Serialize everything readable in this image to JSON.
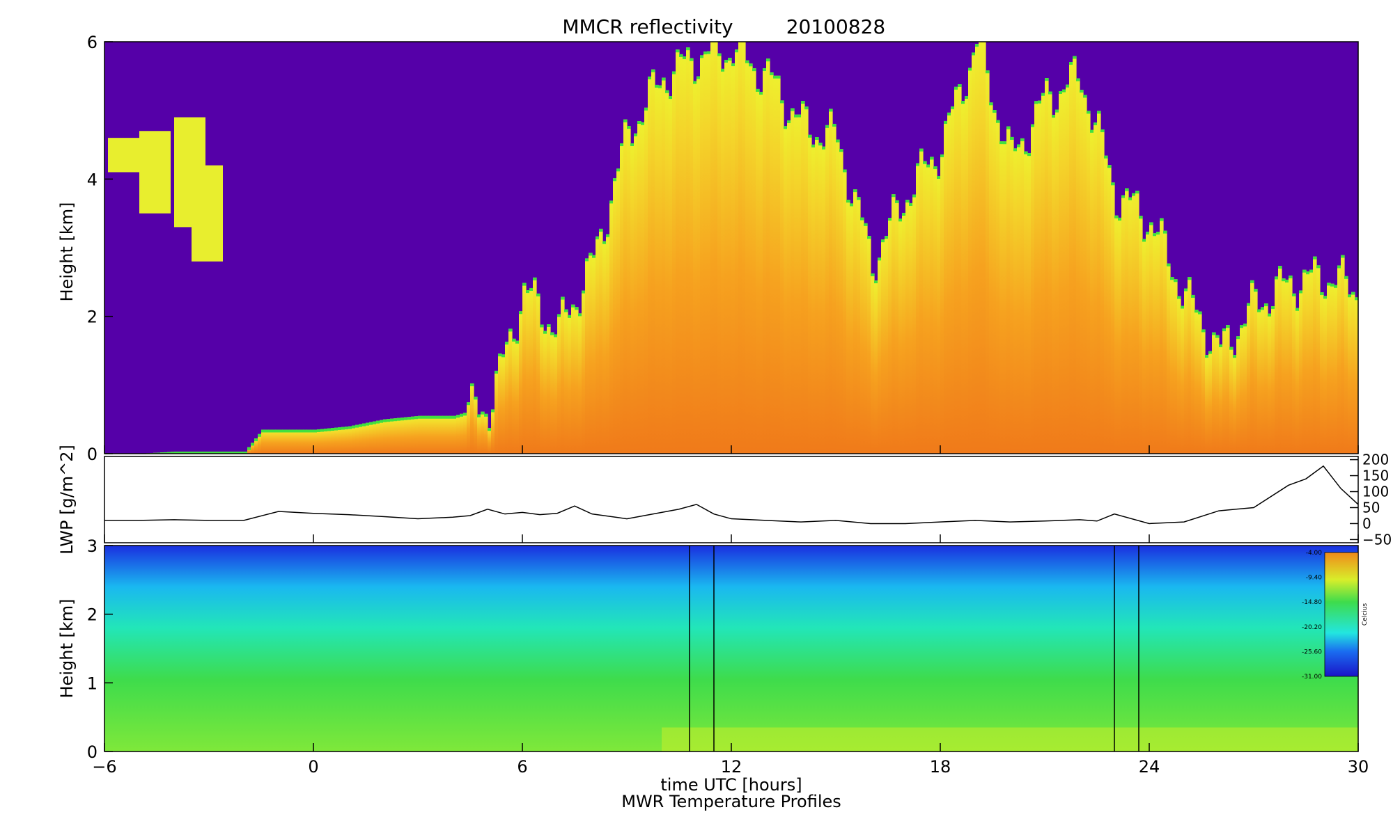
{
  "title": "MMCR reflectivity",
  "date": "20100828",
  "xlabel": "time UTC [hours]",
  "bottom_caption": "MWR Temperature Profiles",
  "colors": {
    "background": "#5500a8",
    "radar_low": "#40e040",
    "radar_mid": "#f4ee2a",
    "radar_high": "#f07a1a",
    "temp_cold": "#1a1adf",
    "temp_mid": "#34e056",
    "temp_warm": "#f08a1a"
  },
  "chart_data": [
    {
      "type": "heatmap",
      "name": "reflectivity",
      "title": "MMCR reflectivity",
      "xlabel": "",
      "ylabel": "Height [km]",
      "xlim": [
        -6,
        30
      ],
      "ylim": [
        0,
        6
      ],
      "x_ticks": [
        "-6",
        "0",
        "6",
        "12",
        "18",
        "24",
        "30"
      ],
      "y_ticks": [
        "0",
        "2",
        "4",
        "6"
      ],
      "cloud_tops_km": [
        [
          -6,
          0.0
        ],
        [
          -5,
          0.0
        ],
        [
          -4,
          0.03
        ],
        [
          -3,
          0.03
        ],
        [
          -2,
          0.03
        ],
        [
          -1.5,
          0.35
        ],
        [
          0,
          0.35
        ],
        [
          1,
          0.4
        ],
        [
          2,
          0.5
        ],
        [
          3,
          0.55
        ],
        [
          4,
          0.55
        ],
        [
          5,
          0.7
        ],
        [
          5.5,
          1.5
        ],
        [
          6,
          2.4
        ],
        [
          7,
          1.8
        ],
        [
          8,
          2.8
        ],
        [
          9,
          4.7
        ],
        [
          10,
          5.5
        ],
        [
          11,
          5.8
        ],
        [
          12,
          5.9
        ],
        [
          13,
          5.5
        ],
        [
          14,
          4.8
        ],
        [
          15,
          4.6
        ],
        [
          16,
          2.8
        ],
        [
          17,
          3.8
        ],
        [
          18,
          4.5
        ],
        [
          19,
          6.0
        ],
        [
          20,
          4.3
        ],
        [
          21,
          5.2
        ],
        [
          22,
          5.5
        ],
        [
          23,
          3.8
        ],
        [
          24,
          3.4
        ],
        [
          25,
          2.3
        ],
        [
          26,
          1.5
        ],
        [
          27,
          2.2
        ],
        [
          28,
          2.5
        ],
        [
          29,
          2.6
        ],
        [
          30,
          2.4
        ]
      ]
    },
    {
      "type": "line",
      "name": "lwp",
      "ylabel": "LWP [g/m^2]",
      "xlim": [
        -6,
        30
      ],
      "ylim": [
        -60,
        210
      ],
      "y_ticks": [
        "200",
        "150",
        "100",
        "50",
        "0",
        "−50"
      ],
      "x": [
        -6,
        -5,
        -4,
        -3,
        -2,
        -1,
        0,
        1,
        2,
        3,
        4,
        4.5,
        5,
        5.5,
        6,
        6.5,
        7,
        7.5,
        8,
        9,
        10,
        10.5,
        11,
        11.5,
        12,
        13,
        14,
        15,
        16,
        17,
        18,
        19,
        20,
        21,
        22,
        22.5,
        23,
        24,
        25,
        26,
        27,
        28,
        28.5,
        29,
        29.5,
        30
      ],
      "y": [
        10,
        10,
        12,
        10,
        10,
        38,
        32,
        28,
        22,
        15,
        20,
        25,
        45,
        30,
        35,
        28,
        32,
        55,
        30,
        15,
        35,
        45,
        60,
        30,
        15,
        10,
        5,
        10,
        0,
        0,
        5,
        10,
        5,
        8,
        12,
        8,
        30,
        0,
        5,
        40,
        50,
        120,
        140,
        180,
        110,
        60
      ]
    },
    {
      "type": "heatmap",
      "name": "mwr_temperature",
      "title": "MWR Temperature Profiles",
      "xlabel": "time UTC [hours]",
      "ylabel": "Height [km]",
      "xlim": [
        -6,
        30
      ],
      "ylim": [
        0,
        3
      ],
      "x_ticks": [
        "−6",
        "0",
        "6",
        "12",
        "18",
        "24",
        "30"
      ],
      "y_ticks": [
        "0",
        "1",
        "2",
        "3"
      ],
      "colorbar": {
        "label": "Celcius",
        "ticks": [
          "-4.00",
          "-9.40",
          "-14.80",
          "-20.20",
          "-25.60",
          "-31.00"
        ],
        "range": [
          -31.0,
          -4.0
        ]
      },
      "gaps_hours": [
        [
          10.8,
          11.5
        ],
        [
          23.0,
          23.7
        ]
      ]
    }
  ]
}
